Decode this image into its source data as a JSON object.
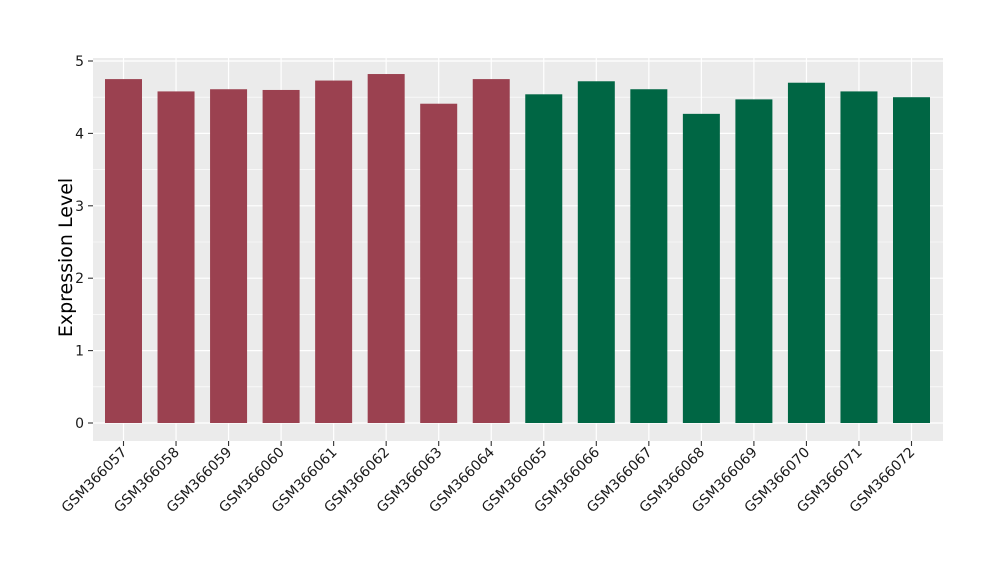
{
  "chart_data": {
    "type": "bar",
    "title": "",
    "xlabel": "",
    "ylabel": "Expression Level",
    "ylim": [
      0,
      5
    ],
    "yticks": [
      0,
      1,
      2,
      3,
      4,
      5
    ],
    "grid": true,
    "legend": "none",
    "categories": [
      "GSM366057",
      "GSM366058",
      "GSM366059",
      "GSM366060",
      "GSM366061",
      "GSM366062",
      "GSM366063",
      "GSM366064",
      "GSM366065",
      "GSM366066",
      "GSM366067",
      "GSM366068",
      "GSM366069",
      "GSM366070",
      "GSM366071",
      "GSM366072"
    ],
    "values": [
      4.75,
      4.58,
      4.61,
      4.6,
      4.73,
      4.82,
      4.41,
      4.75,
      4.54,
      4.72,
      4.61,
      4.27,
      4.47,
      4.7,
      4.58,
      4.5
    ],
    "bar_colors": [
      "#9b4150",
      "#9b4150",
      "#9b4150",
      "#9b4150",
      "#9b4150",
      "#9b4150",
      "#9b4150",
      "#9b4150",
      "#006644",
      "#006644",
      "#006644",
      "#006644",
      "#006644",
      "#006644",
      "#006644",
      "#006644"
    ],
    "panel_background": "#ebebeb",
    "grid_color": "#ffffff"
  }
}
